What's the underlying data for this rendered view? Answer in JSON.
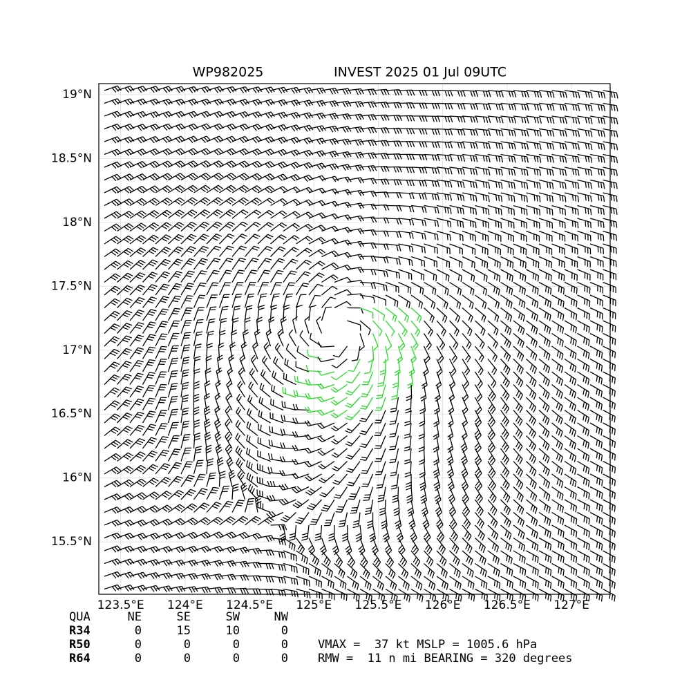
{
  "map": {
    "title_left": "WP982025",
    "title_right": "INVEST 2025 01 Jul 09UTC",
    "lonlim": [
      123.33,
      127.3
    ],
    "latlim": [
      15.09,
      19.086
    ],
    "lon_ticks": [
      {
        "value": 123.5,
        "label": "123.5°E"
      },
      {
        "value": 124,
        "label": "124°E"
      },
      {
        "value": 124.5,
        "label": "124.5°E"
      },
      {
        "value": 125,
        "label": "125°E"
      },
      {
        "value": 125.5,
        "label": "125.5°E"
      },
      {
        "value": 126,
        "label": "126°E"
      },
      {
        "value": 126.5,
        "label": "126.5°E"
      },
      {
        "value": 127,
        "label": "127°E"
      }
    ],
    "lat_ticks": [
      {
        "value": 15.5,
        "label": "15.5°N"
      },
      {
        "value": 16,
        "label": "16°N"
      },
      {
        "value": 16.5,
        "label": "16.5°N"
      },
      {
        "value": 17,
        "label": "17°N"
      },
      {
        "value": 17.5,
        "label": "17.5°N"
      },
      {
        "value": 18,
        "label": "18°N"
      },
      {
        "value": 18.5,
        "label": "18.5°N"
      },
      {
        "value": 19,
        "label": "19°N"
      }
    ],
    "radii_table": {
      "header": [
        "QUA",
        "NE",
        "SE",
        "SW",
        "NW"
      ],
      "rows": [
        {
          "label": "R34",
          "values": [
            0,
            15,
            10,
            0
          ]
        },
        {
          "label": "R50",
          "values": [
            0,
            0,
            0,
            0
          ]
        },
        {
          "label": "R64",
          "values": [
            0,
            0,
            0,
            0
          ]
        }
      ]
    },
    "info": [
      "VMAX =  37 kt MSLP = 1005.6 hPa",
      "RMW =  11 n mi BEARING = 320 degrees"
    ]
  }
}
